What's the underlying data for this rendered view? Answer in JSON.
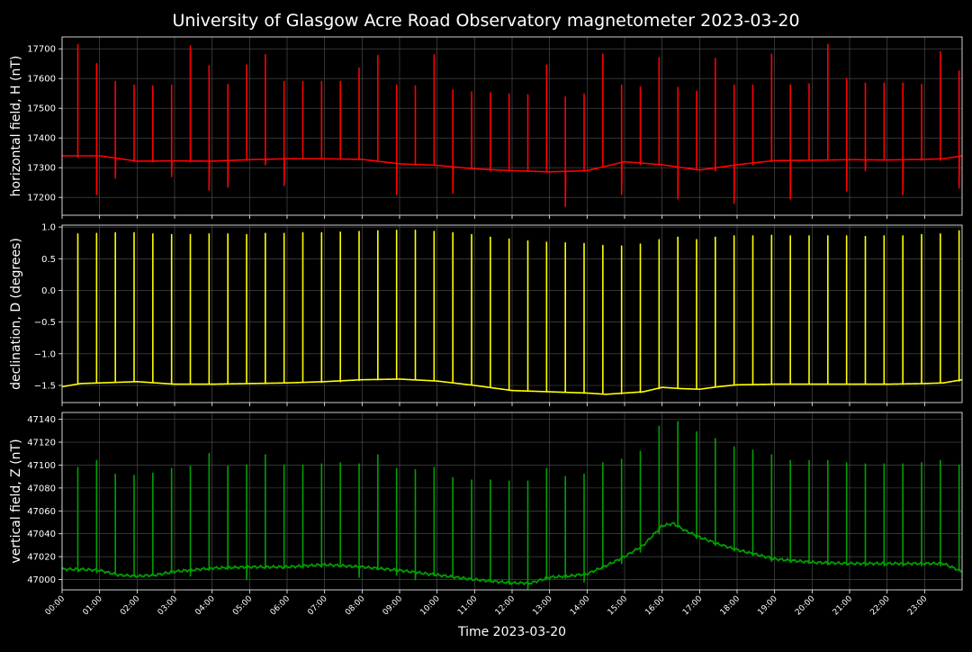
{
  "chart_data": {
    "type": "line",
    "title": "University of Glasgow Acre Road Observatory magnetometer 2023-03-20",
    "xlabel": "Time 2023-03-20",
    "x_ticks": [
      "00:00",
      "01:00",
      "02:00",
      "03:00",
      "04:00",
      "05:00",
      "06:00",
      "07:00",
      "08:00",
      "09:00",
      "10:00",
      "11:00",
      "12:00",
      "13:00",
      "14:00",
      "15:00",
      "16:00",
      "17:00",
      "18:00",
      "19:00",
      "20:00",
      "21:00",
      "22:00",
      "23:00"
    ],
    "xlim_hours": [
      0,
      24
    ],
    "grid": true,
    "panels": [
      {
        "key": "H",
        "ylabel": "horizontal field, H (nT)",
        "color": "#ff0000",
        "ylim": [
          17140,
          17740
        ],
        "y_ticks": [
          17200,
          17300,
          17400,
          17500,
          17600,
          17700
        ],
        "baseline": {
          "t": [
            0,
            1,
            2,
            3,
            4,
            5,
            6,
            7,
            8,
            9,
            10,
            11,
            12,
            13,
            14,
            15,
            16,
            17,
            18,
            19,
            20,
            21,
            22,
            23,
            23.5,
            24
          ],
          "v": [
            17340,
            17340,
            17322,
            17323,
            17322,
            17327,
            17330,
            17330,
            17328,
            17313,
            17308,
            17296,
            17290,
            17286,
            17290,
            17320,
            17310,
            17292,
            17310,
            17324,
            17325,
            17327,
            17326,
            17328,
            17330,
            17340
          ]
        },
        "spikes": [
          {
            "t": 0.42,
            "hi": 17715,
            "lo": 17335
          },
          {
            "t": 0.92,
            "hi": 17650,
            "lo": 17210
          },
          {
            "t": 1.42,
            "hi": 17590,
            "lo": 17265
          },
          {
            "t": 1.92,
            "hi": 17578,
            "lo": 17320
          },
          {
            "t": 2.42,
            "hi": 17575,
            "lo": 17320
          },
          {
            "t": 2.92,
            "hi": 17578,
            "lo": 17270
          },
          {
            "t": 3.42,
            "hi": 17710,
            "lo": 17320
          },
          {
            "t": 3.92,
            "hi": 17643,
            "lo": 17225
          },
          {
            "t": 4.42,
            "hi": 17580,
            "lo": 17235
          },
          {
            "t": 4.92,
            "hi": 17645,
            "lo": 17325
          },
          {
            "t": 5.42,
            "hi": 17680,
            "lo": 17310
          },
          {
            "t": 5.92,
            "hi": 17590,
            "lo": 17240
          },
          {
            "t": 6.42,
            "hi": 17590,
            "lo": 17330
          },
          {
            "t": 6.92,
            "hi": 17590,
            "lo": 17330
          },
          {
            "t": 7.42,
            "hi": 17590,
            "lo": 17330
          },
          {
            "t": 7.92,
            "hi": 17635,
            "lo": 17330
          },
          {
            "t": 8.42,
            "hi": 17678,
            "lo": 17325
          },
          {
            "t": 8.92,
            "hi": 17578,
            "lo": 17210
          },
          {
            "t": 9.42,
            "hi": 17575,
            "lo": 17310
          },
          {
            "t": 9.92,
            "hi": 17680,
            "lo": 17310
          },
          {
            "t": 10.42,
            "hi": 17562,
            "lo": 17215
          },
          {
            "t": 10.92,
            "hi": 17555,
            "lo": 17300
          },
          {
            "t": 11.42,
            "hi": 17552,
            "lo": 17290
          },
          {
            "t": 11.92,
            "hi": 17548,
            "lo": 17290
          },
          {
            "t": 12.42,
            "hi": 17545,
            "lo": 17290
          },
          {
            "t": 12.92,
            "hi": 17645,
            "lo": 17285
          },
          {
            "t": 13.42,
            "hi": 17538,
            "lo": 17170
          },
          {
            "t": 13.92,
            "hi": 17548,
            "lo": 17290
          },
          {
            "t": 14.42,
            "hi": 17682,
            "lo": 17310
          },
          {
            "t": 14.92,
            "hi": 17578,
            "lo": 17210
          },
          {
            "t": 15.42,
            "hi": 17572,
            "lo": 17310
          },
          {
            "t": 15.92,
            "hi": 17670,
            "lo": 17310
          },
          {
            "t": 16.42,
            "hi": 17570,
            "lo": 17195
          },
          {
            "t": 16.92,
            "hi": 17557,
            "lo": 17295
          },
          {
            "t": 17.42,
            "hi": 17668,
            "lo": 17290
          },
          {
            "t": 17.92,
            "hi": 17578,
            "lo": 17180
          },
          {
            "t": 18.42,
            "hi": 17578,
            "lo": 17310
          },
          {
            "t": 18.92,
            "hi": 17682,
            "lo": 17320
          },
          {
            "t": 19.42,
            "hi": 17578,
            "lo": 17195
          },
          {
            "t": 19.92,
            "hi": 17582,
            "lo": 17325
          },
          {
            "t": 20.42,
            "hi": 17715,
            "lo": 17325
          },
          {
            "t": 20.92,
            "hi": 17600,
            "lo": 17222
          },
          {
            "t": 21.42,
            "hi": 17585,
            "lo": 17290
          },
          {
            "t": 21.92,
            "hi": 17585,
            "lo": 17325
          },
          {
            "t": 22.42,
            "hi": 17585,
            "lo": 17210
          },
          {
            "t": 22.92,
            "hi": 17580,
            "lo": 17325
          },
          {
            "t": 23.42,
            "hi": 17690,
            "lo": 17325
          },
          {
            "t": 23.92,
            "hi": 17625,
            "lo": 17232
          }
        ]
      },
      {
        "key": "D",
        "ylabel": "declination, D (degrees)",
        "color": "#ffff00",
        "ylim": [
          -1.77,
          1.03
        ],
        "y_ticks": [
          -1.5,
          -1.0,
          -0.5,
          0.0,
          0.5,
          1.0
        ],
        "y_tick_labels": [
          "−1.5",
          "−1.0",
          "−0.5",
          "0.0",
          "0.5",
          "1.0"
        ],
        "baseline": {
          "t": [
            0,
            0.5,
            1,
            2,
            3,
            4,
            5,
            6,
            7,
            8,
            9,
            10,
            11,
            12,
            13,
            14,
            14.5,
            15,
            15.5,
            16,
            16.5,
            17,
            17.5,
            18,
            19,
            20,
            21,
            22,
            23,
            23.5,
            24
          ],
          "v": [
            -1.52,
            -1.47,
            -1.46,
            -1.44,
            -1.48,
            -1.48,
            -1.47,
            -1.46,
            -1.44,
            -1.41,
            -1.4,
            -1.43,
            -1.5,
            -1.58,
            -1.6,
            -1.62,
            -1.64,
            -1.62,
            -1.6,
            -1.53,
            -1.55,
            -1.56,
            -1.52,
            -1.49,
            -1.48,
            -1.48,
            -1.48,
            -1.48,
            -1.47,
            -1.46,
            -1.41
          ]
        },
        "spikes": [
          {
            "t": 0.42,
            "hi": 0.89,
            "lo": -1.47
          },
          {
            "t": 0.92,
            "hi": 0.9,
            "lo": -1.46
          },
          {
            "t": 1.42,
            "hi": 0.91,
            "lo": -1.45
          },
          {
            "t": 1.92,
            "hi": 0.91,
            "lo": -1.44
          },
          {
            "t": 2.42,
            "hi": 0.89,
            "lo": -1.45
          },
          {
            "t": 2.92,
            "hi": 0.88,
            "lo": -1.48
          },
          {
            "t": 3.42,
            "hi": 0.88,
            "lo": -1.48
          },
          {
            "t": 3.92,
            "hi": 0.89,
            "lo": -1.48
          },
          {
            "t": 4.42,
            "hi": 0.89,
            "lo": -1.47
          },
          {
            "t": 4.92,
            "hi": 0.88,
            "lo": -1.47
          },
          {
            "t": 5.42,
            "hi": 0.9,
            "lo": -1.47
          },
          {
            "t": 5.92,
            "hi": 0.9,
            "lo": -1.46
          },
          {
            "t": 6.42,
            "hi": 0.91,
            "lo": -1.45
          },
          {
            "t": 6.92,
            "hi": 0.91,
            "lo": -1.45
          },
          {
            "t": 7.42,
            "hi": 0.92,
            "lo": -1.44
          },
          {
            "t": 7.92,
            "hi": 0.93,
            "lo": -1.42
          },
          {
            "t": 8.42,
            "hi": 0.94,
            "lo": -1.41
          },
          {
            "t": 8.92,
            "hi": 0.95,
            "lo": -1.4
          },
          {
            "t": 9.42,
            "hi": 0.95,
            "lo": -1.4
          },
          {
            "t": 9.92,
            "hi": 0.93,
            "lo": -1.42
          },
          {
            "t": 10.42,
            "hi": 0.91,
            "lo": -1.45
          },
          {
            "t": 10.92,
            "hi": 0.88,
            "lo": -1.49
          },
          {
            "t": 11.42,
            "hi": 0.84,
            "lo": -1.52
          },
          {
            "t": 11.92,
            "hi": 0.81,
            "lo": -1.56
          },
          {
            "t": 12.42,
            "hi": 0.78,
            "lo": -1.58
          },
          {
            "t": 12.92,
            "hi": 0.76,
            "lo": -1.6
          },
          {
            "t": 13.42,
            "hi": 0.75,
            "lo": -1.6
          },
          {
            "t": 13.92,
            "hi": 0.74,
            "lo": -1.61
          },
          {
            "t": 14.42,
            "hi": 0.71,
            "lo": -1.63
          },
          {
            "t": 14.92,
            "hi": 0.7,
            "lo": -1.63
          },
          {
            "t": 15.42,
            "hi": 0.73,
            "lo": -1.61
          },
          {
            "t": 15.92,
            "hi": 0.8,
            "lo": -1.55
          },
          {
            "t": 16.42,
            "hi": 0.84,
            "lo": -1.54
          },
          {
            "t": 16.92,
            "hi": 0.8,
            "lo": -1.55
          },
          {
            "t": 17.42,
            "hi": 0.84,
            "lo": -1.52
          },
          {
            "t": 17.92,
            "hi": 0.86,
            "lo": -1.49
          },
          {
            "t": 18.42,
            "hi": 0.86,
            "lo": -1.49
          },
          {
            "t": 18.92,
            "hi": 0.87,
            "lo": -1.48
          },
          {
            "t": 19.42,
            "hi": 0.86,
            "lo": -1.48
          },
          {
            "t": 19.92,
            "hi": 0.86,
            "lo": -1.48
          },
          {
            "t": 20.42,
            "hi": 0.86,
            "lo": -1.48
          },
          {
            "t": 20.92,
            "hi": 0.86,
            "lo": -1.48
          },
          {
            "t": 21.42,
            "hi": 0.85,
            "lo": -1.48
          },
          {
            "t": 21.92,
            "hi": 0.86,
            "lo": -1.48
          },
          {
            "t": 22.42,
            "hi": 0.86,
            "lo": -1.48
          },
          {
            "t": 22.92,
            "hi": 0.88,
            "lo": -1.47
          },
          {
            "t": 23.42,
            "hi": 0.89,
            "lo": -1.46
          },
          {
            "t": 23.92,
            "hi": 0.94,
            "lo": -1.43
          }
        ]
      },
      {
        "key": "Z",
        "ylabel": "vertical field, Z (nT)",
        "color": "#00a000",
        "ylim": [
          46991,
          47146
        ],
        "y_ticks": [
          47000,
          47020,
          47040,
          47060,
          47080,
          47100,
          47120,
          47140
        ],
        "baseline": {
          "t": [
            0,
            0.5,
            1,
            1.5,
            2,
            2.5,
            3,
            4,
            5,
            6,
            7,
            8,
            9,
            10,
            11,
            12,
            12.5,
            13,
            13.5,
            14,
            14.5,
            15,
            15.5,
            16,
            16.3,
            16.6,
            17,
            17.5,
            18,
            18.5,
            19,
            20,
            21,
            22,
            23,
            23.5,
            24
          ],
          "v": [
            47009,
            47009,
            47008,
            47004,
            47003,
            47004,
            47007,
            47010,
            47011,
            47011,
            47013,
            47011,
            47008,
            47004,
            47000,
            46997,
            46997,
            47002,
            47003,
            47005,
            47012,
            47020,
            47030,
            47047,
            47049,
            47043,
            47037,
            47031,
            47026,
            47022,
            47018,
            47015,
            47014,
            47014,
            47014,
            47014,
            47007
          ]
        },
        "spikes": [
          {
            "t": 0.42,
            "hi": 47098,
            "lo": 47007
          },
          {
            "t": 0.92,
            "hi": 47104,
            "lo": 47006
          },
          {
            "t": 1.42,
            "hi": 47092,
            "lo": 47005
          },
          {
            "t": 1.92,
            "hi": 47091,
            "lo": 47003
          },
          {
            "t": 2.42,
            "hi": 47093,
            "lo": 47004
          },
          {
            "t": 2.92,
            "hi": 47097,
            "lo": 47006
          },
          {
            "t": 3.42,
            "hi": 47099,
            "lo": 47003
          },
          {
            "t": 3.92,
            "hi": 47110,
            "lo": 47008
          },
          {
            "t": 4.42,
            "hi": 47099,
            "lo": 47009
          },
          {
            "t": 4.92,
            "hi": 47100,
            "lo": 47000
          },
          {
            "t": 5.42,
            "hi": 47109,
            "lo": 47010
          },
          {
            "t": 5.92,
            "hi": 47100,
            "lo": 47010
          },
          {
            "t": 6.42,
            "hi": 47100,
            "lo": 47010
          },
          {
            "t": 6.92,
            "hi": 47101,
            "lo": 47011
          },
          {
            "t": 7.42,
            "hi": 47102,
            "lo": 47011
          },
          {
            "t": 7.92,
            "hi": 47101,
            "lo": 47002
          },
          {
            "t": 8.42,
            "hi": 47109,
            "lo": 47009
          },
          {
            "t": 8.92,
            "hi": 47097,
            "lo": 47004
          },
          {
            "t": 9.42,
            "hi": 47096,
            "lo": 47000
          },
          {
            "t": 9.92,
            "hi": 47098,
            "lo": 47004
          },
          {
            "t": 10.42,
            "hi": 47089,
            "lo": 47002
          },
          {
            "t": 10.92,
            "hi": 47087,
            "lo": 47000
          },
          {
            "t": 11.42,
            "hi": 47087,
            "lo": 46998
          },
          {
            "t": 11.92,
            "hi": 47086,
            "lo": 46996
          },
          {
            "t": 12.42,
            "hi": 47086,
            "lo": 46992
          },
          {
            "t": 12.92,
            "hi": 47097,
            "lo": 47000
          },
          {
            "t": 13.42,
            "hi": 47090,
            "lo": 47001
          },
          {
            "t": 13.92,
            "hi": 47092,
            "lo": 46998
          },
          {
            "t": 14.42,
            "hi": 47102,
            "lo": 47010
          },
          {
            "t": 14.92,
            "hi": 47105,
            "lo": 47014
          },
          {
            "t": 15.42,
            "hi": 47112,
            "lo": 47024
          },
          {
            "t": 15.92,
            "hi": 47134,
            "lo": 47040
          },
          {
            "t": 16.42,
            "hi": 47138,
            "lo": 47046
          },
          {
            "t": 16.92,
            "hi": 47129,
            "lo": 47036
          },
          {
            "t": 17.42,
            "hi": 47123,
            "lo": 47030
          },
          {
            "t": 17.92,
            "hi": 47116,
            "lo": 47025
          },
          {
            "t": 18.42,
            "hi": 47113,
            "lo": 47021
          },
          {
            "t": 18.92,
            "hi": 47109,
            "lo": 47016
          },
          {
            "t": 19.42,
            "hi": 47104,
            "lo": 47015
          },
          {
            "t": 19.92,
            "hi": 47104,
            "lo": 47014
          },
          {
            "t": 20.42,
            "hi": 47104,
            "lo": 47013
          },
          {
            "t": 20.92,
            "hi": 47102,
            "lo": 47013
          },
          {
            "t": 21.42,
            "hi": 47101,
            "lo": 47012
          },
          {
            "t": 21.92,
            "hi": 47101,
            "lo": 47012
          },
          {
            "t": 22.42,
            "hi": 47101,
            "lo": 47012
          },
          {
            "t": 22.92,
            "hi": 47102,
            "lo": 47012
          },
          {
            "t": 23.42,
            "hi": 47104,
            "lo": 47012
          },
          {
            "t": 23.92,
            "hi": 47100,
            "lo": 47008
          }
        ]
      }
    ]
  }
}
